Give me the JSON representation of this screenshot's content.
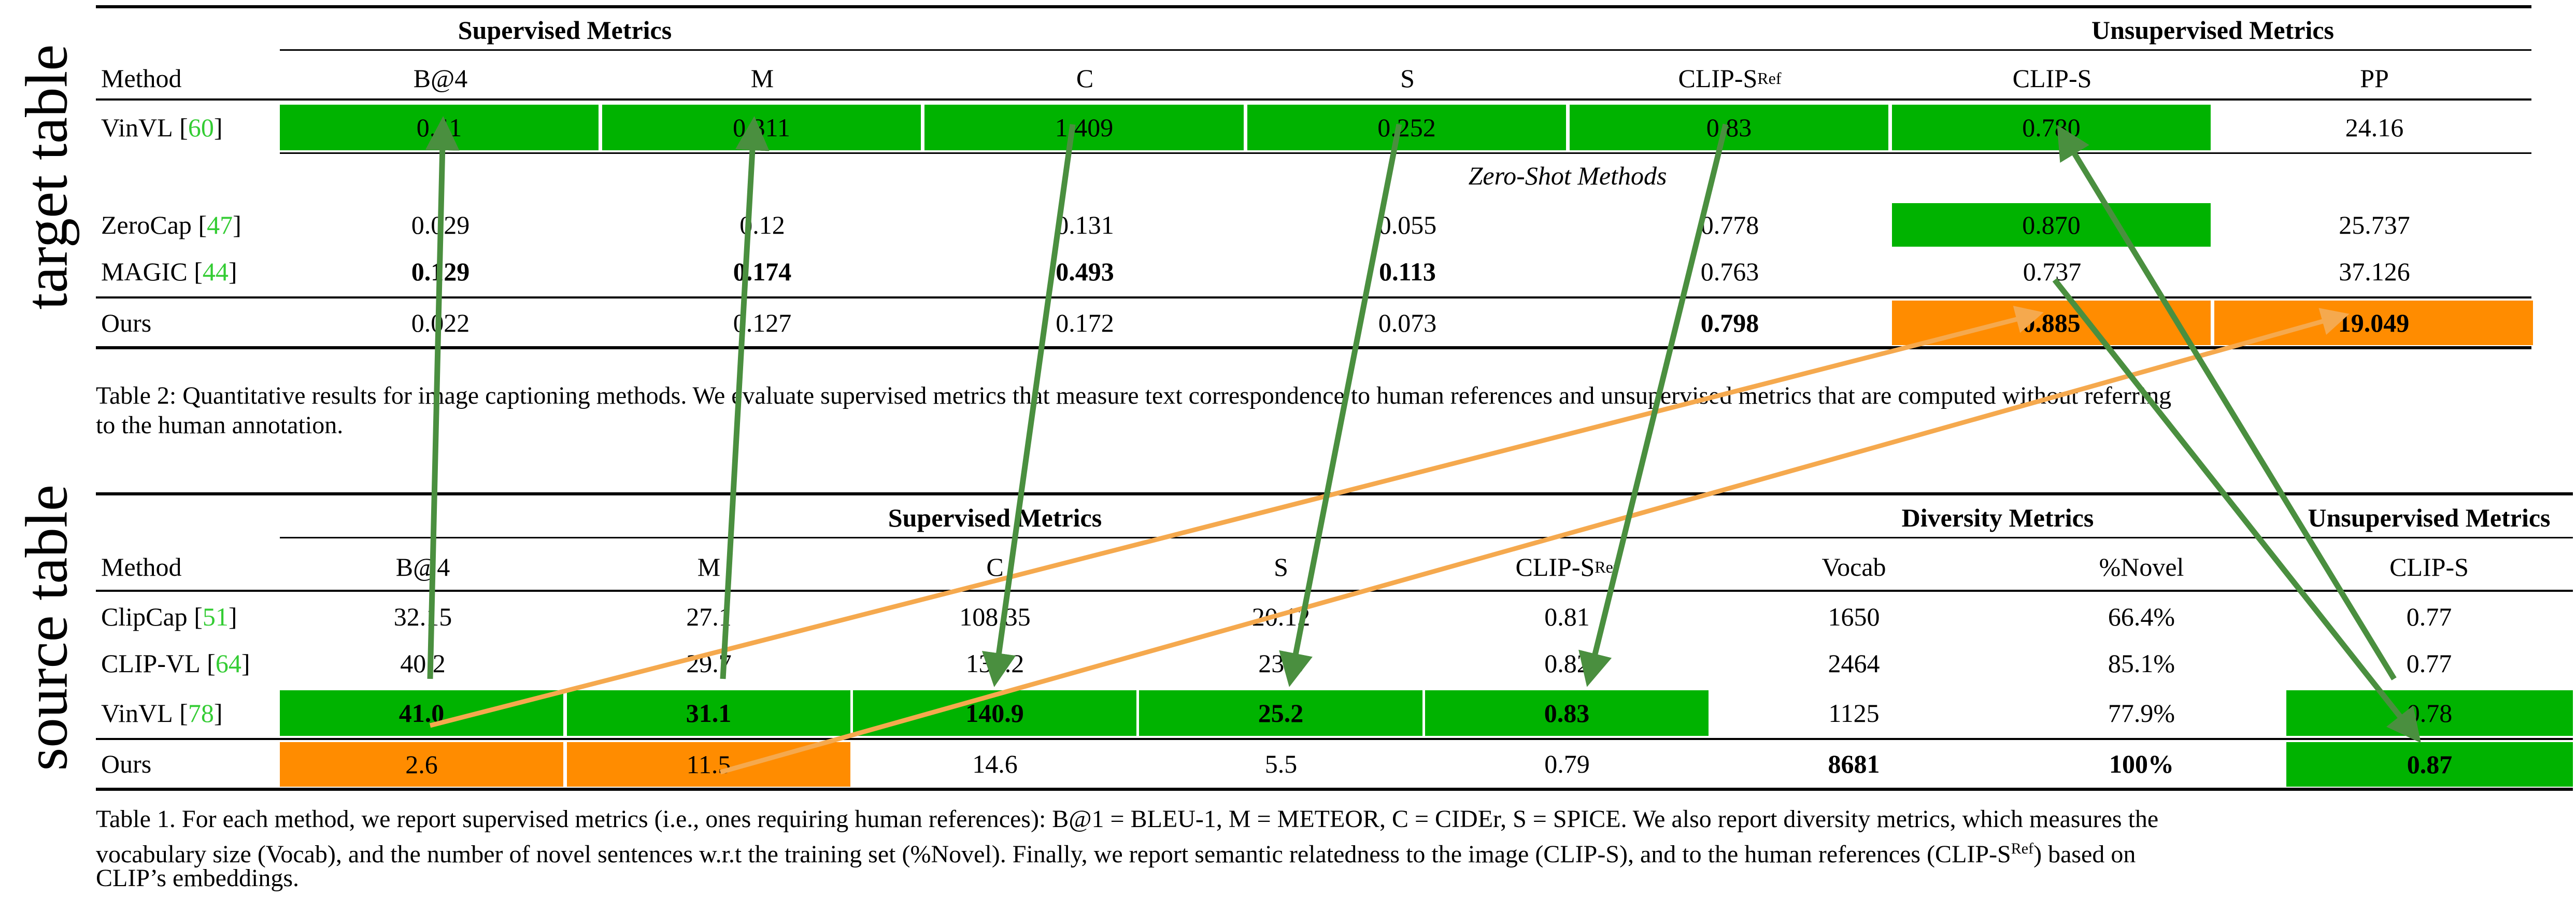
{
  "labels": {
    "target": "target table",
    "source": "source table"
  },
  "target": {
    "group_supervised": "Supervised Metrics",
    "group_unsupervised": "Unsupervised Metrics",
    "headers": [
      "Method",
      "B@4",
      "M",
      "C",
      "S",
      "CLIP-S",
      "CLIP-S",
      "PP"
    ],
    "ref_sup": "Ref",
    "vinvl": {
      "name": "VinVL",
      "cite": "60",
      "values": [
        "0.41",
        "0.311",
        "1.409",
        "0.252",
        "0.83",
        "0.780",
        "24.16"
      ]
    },
    "section": "Zero-Shot Methods",
    "zerocap": {
      "name": "ZeroCap",
      "cite": "47",
      "values": [
        "0.029",
        "0.12",
        "0.131",
        "0.055",
        "0.778",
        "0.870",
        "25.737"
      ]
    },
    "magic": {
      "name": "MAGIC",
      "cite": "44",
      "values": [
        "0.129",
        "0.174",
        "0.493",
        "0.113",
        "0.763",
        "0.737",
        "37.126"
      ]
    },
    "ours": {
      "name": "Ours",
      "values": [
        "0.022",
        "0.127",
        "0.172",
        "0.073",
        "0.798",
        "0.885",
        "19.049"
      ]
    },
    "caption_l1": "Table 2: Quantitative results for image captioning methods. We evaluate supervised metrics that measure text correspondence to human references and unsupervised metrics that are computed without referring",
    "caption_l2": "to the human annotation."
  },
  "source": {
    "group_supervised": "Supervised Metrics",
    "group_diversity": "Diversity Metrics",
    "group_unsupervised": "Unsupervised Metrics",
    "headers": [
      "Method",
      "B@4",
      "M",
      "C",
      "S",
      "CLIP-S",
      "Vocab",
      "%Novel",
      "CLIP-S"
    ],
    "ref_sup": "Ref",
    "clipcap": {
      "name": "ClipCap",
      "cite": "51",
      "values": [
        "32.15",
        "27.1",
        "108.35",
        "20.12",
        "0.81",
        "1650",
        "66.4%",
        "0.77"
      ]
    },
    "clipvl": {
      "name": "CLIP-VL",
      "cite": "64",
      "values": [
        "40.2",
        "29.7",
        "134.2",
        "23.8",
        "0.82",
        "2464",
        "85.1%",
        "0.77"
      ]
    },
    "vinvl": {
      "name": "VinVL",
      "cite": "78",
      "values": [
        "41.0",
        "31.1",
        "140.9",
        "25.2",
        "0.83",
        "1125",
        "77.9%",
        "0.78"
      ]
    },
    "ours": {
      "name": "Ours",
      "values": [
        "2.6",
        "11.5",
        "14.6",
        "5.5",
        "0.79",
        "8681",
        "100%",
        "0.87"
      ]
    },
    "caption_l1": "Table 1. For each method, we report supervised metrics (i.e., ones requiring human references): B@1 = BLEU-1, M = METEOR, C = CIDEr, S = SPICE. We also report diversity metrics, which measures the",
    "caption_l2": "vocabulary size (Vocab), and the number of novel sentences w.r.t the training set (%Novel). Finally, we report semantic relatedness to the image (CLIP-S), and to the human references (CLIP-S",
    "caption_l2_sup": "Ref",
    "caption_l2_end": ") based on",
    "caption_l3": "CLIP’s embeddings."
  },
  "colors": {
    "green_fill": "#00b300",
    "orange_fill": "#ff8c00",
    "green_arrow": "#4a8f3f",
    "orange_arrow": "#f5a94e",
    "citation": "#33cc33"
  }
}
